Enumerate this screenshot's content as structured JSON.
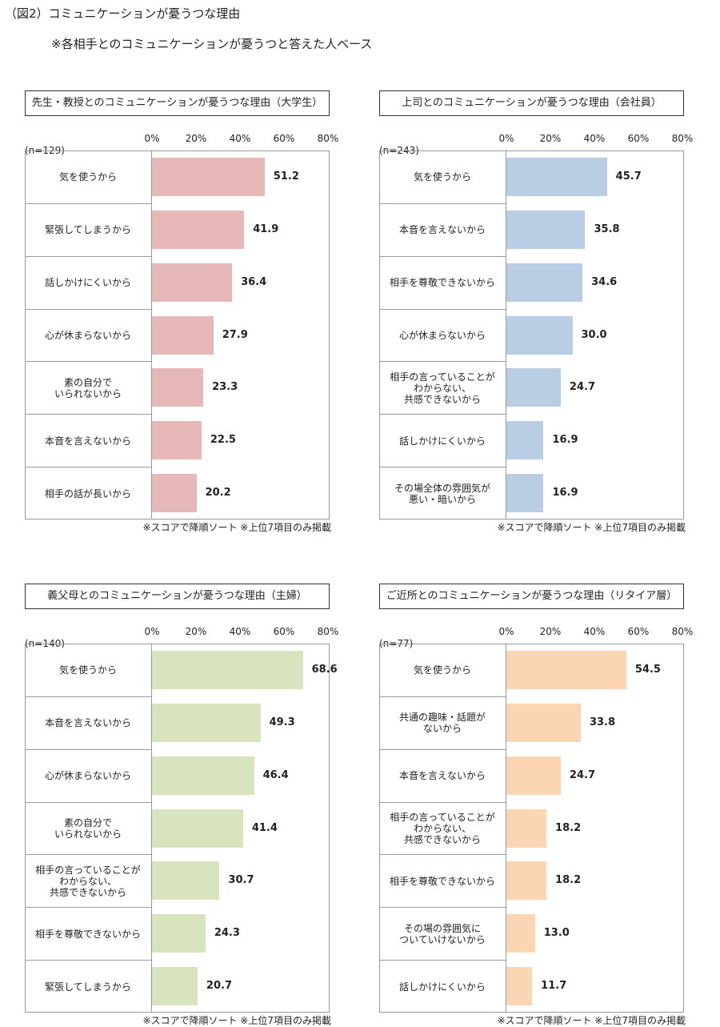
{
  "page": {
    "title": "（図2）コミュニケーションが憂うつな理由",
    "subtitle": "※各相手とのコミュニケーションが憂うつと答えた人ベース"
  },
  "chart_data": [
    {
      "type": "bar",
      "orientation": "horizontal",
      "title": "先生・教授とのコミュニケーションが憂うつな理由（大学生）",
      "n_label": "(n=129)",
      "ticks": [
        "0%",
        "20%",
        "40%",
        "60%",
        "80%"
      ],
      "xlim": [
        0,
        80
      ],
      "color": "#e6b9b8",
      "categories": [
        "気を使うから",
        "緊張してしまうから",
        "話しかけにくいから",
        "心が休まらないから",
        "素の自分で\nいられないから",
        "本音を言えないから",
        "相手の話が長いから"
      ],
      "values": [
        51.2,
        41.9,
        36.4,
        27.9,
        23.3,
        22.5,
        20.2
      ],
      "value_labels": [
        "51.2",
        "41.9",
        "36.4",
        "27.9",
        "23.3",
        "22.5",
        "20.2"
      ],
      "note": "※スコアで降順ソート ※上位7項目のみ掲載"
    },
    {
      "type": "bar",
      "orientation": "horizontal",
      "title": "上司とのコミュニケーションが憂うつな理由（会社員）",
      "n_label": "(n=243)",
      "ticks": [
        "0%",
        "20%",
        "40%",
        "60%",
        "80%"
      ],
      "xlim": [
        0,
        80
      ],
      "color": "#b9cde5",
      "categories": [
        "気を使うから",
        "本音を言えないから",
        "相手を尊敬できないから",
        "心が休まらないから",
        "相手の言っていることが\nわからない、\n共感できないから",
        "話しかけにくいから",
        "その場全体の雰囲気が\n悪い・暗いから"
      ],
      "values": [
        45.7,
        35.8,
        34.6,
        30.0,
        24.7,
        16.9,
        16.9
      ],
      "value_labels": [
        "45.7",
        "35.8",
        "34.6",
        "30.0",
        "24.7",
        "16.9",
        "16.9"
      ],
      "note": "※スコアで降順ソート ※上位7項目のみ掲載"
    },
    {
      "type": "bar",
      "orientation": "horizontal",
      "title": "義父母とのコミュニケーションが憂うつな理由（主婦）",
      "n_label": "(n=140)",
      "ticks": [
        "0%",
        "20%",
        "40%",
        "60%",
        "80%"
      ],
      "xlim": [
        0,
        80
      ],
      "color": "#d7e4bd",
      "categories": [
        "気を使うから",
        "本音を言えないから",
        "心が休まらないから",
        "素の自分で\nいられないから",
        "相手の言っていることが\nわからない、\n共感できないから",
        "相手を尊敬できないから",
        "緊張してしまうから"
      ],
      "values": [
        68.6,
        49.3,
        46.4,
        41.4,
        30.7,
        24.3,
        20.7
      ],
      "value_labels": [
        "68.6",
        "49.3",
        "46.4",
        "41.4",
        "30.7",
        "24.3",
        "20.7"
      ],
      "note": "※スコアで降順ソート ※上位7項目のみ掲載"
    },
    {
      "type": "bar",
      "orientation": "horizontal",
      "title": "ご近所とのコミュニケーションが憂うつな理由（リタイア層）",
      "n_label": "(n=77)",
      "ticks": [
        "0%",
        "20%",
        "40%",
        "60%",
        "80%"
      ],
      "xlim": [
        0,
        80
      ],
      "color": "#fcd5b5",
      "categories": [
        "気を使うから",
        "共通の趣味・話題が\nないから",
        "本音を言えないから",
        "相手の言っていることが\nわからない、\n共感できないから",
        "相手を尊敬できないから",
        "その場の雰囲気に\nついていけないから",
        "話しかけにくいから"
      ],
      "values": [
        54.5,
        33.8,
        24.7,
        18.2,
        18.2,
        13.0,
        11.7
      ],
      "value_labels": [
        "54.5",
        "33.8",
        "24.7",
        "18.2",
        "18.2",
        "13.0",
        "11.7"
      ],
      "note": "※スコアで降順ソート ※上位7項目のみ掲載"
    }
  ]
}
